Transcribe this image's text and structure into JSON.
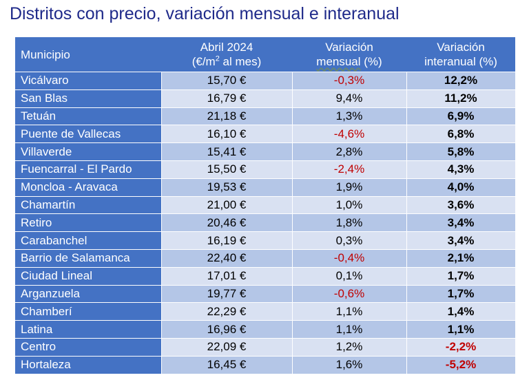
{
  "title": "Distritos con precio, variación mensual e interanual",
  "header": {
    "municipio": "Municipio",
    "precio_line1": "Abril 2024",
    "precio_pre": "(€/m",
    "precio_sup": "2",
    "precio_post": " al mes)",
    "mensual_line1": "Variación",
    "mensual_line2": "mensual",
    "mensual_suffix": " (%)",
    "interanual_line1": "Variación",
    "interanual_line2": "interanual (%)"
  },
  "rows": [
    {
      "municipio": "Vicálvaro",
      "precio": "15,70 €",
      "mensual": "-0,3%",
      "interanual": "12,2%"
    },
    {
      "municipio": "San Blas",
      "precio": "16,79 €",
      "mensual": "9,4%",
      "interanual": "11,2%"
    },
    {
      "municipio": "Tetuán",
      "precio": "21,18 €",
      "mensual": "1,3%",
      "interanual": "6,9%"
    },
    {
      "municipio": "Puente de Vallecas",
      "precio": "16,10 €",
      "mensual": "-4,6%",
      "interanual": "6,8%"
    },
    {
      "municipio": "Villaverde",
      "precio": "15,41 €",
      "mensual": "2,8%",
      "interanual": "5,8%"
    },
    {
      "municipio": "Fuencarral - El Pardo",
      "precio": "15,50 €",
      "mensual": "-2,4%",
      "interanual": "4,3%"
    },
    {
      "municipio": "Moncloa - Aravaca",
      "precio": "19,53 €",
      "mensual": "1,9%",
      "interanual": "4,0%"
    },
    {
      "municipio": "Chamartín",
      "precio": "21,00 €",
      "mensual": "1,0%",
      "interanual": "3,6%"
    },
    {
      "municipio": "Retiro",
      "precio": "20,46 €",
      "mensual": "1,8%",
      "interanual": "3,4%"
    },
    {
      "municipio": "Carabanchel",
      "precio": "16,19 €",
      "mensual": "0,3%",
      "interanual": "3,4%"
    },
    {
      "municipio": "Barrio de Salamanca",
      "precio": "22,40 €",
      "mensual": "-0,4%",
      "interanual": "2,1%"
    },
    {
      "municipio": "Ciudad Lineal",
      "precio": "17,01 €",
      "mensual": "0,1%",
      "interanual": "1,7%"
    },
    {
      "municipio": "Arganzuela",
      "precio": "19,77 €",
      "mensual": "-0,6%",
      "interanual": "1,7%"
    },
    {
      "municipio": "Chamberí",
      "precio": "22,29 €",
      "mensual": "1,1%",
      "interanual": "1,4%"
    },
    {
      "municipio": "Latina",
      "precio": "16,96 €",
      "mensual": "1,1%",
      "interanual": "1,1%"
    },
    {
      "municipio": "Centro",
      "precio": "22,09 €",
      "mensual": "1,2%",
      "interanual": "-2,2%"
    },
    {
      "municipio": "Hortaleza",
      "precio": "16,45 €",
      "mensual": "1,6%",
      "interanual": "-5,2%"
    }
  ],
  "colors": {
    "title": "#1f2a8a",
    "header_bg": "#4472c4",
    "row_odd": "#b4c6e7",
    "row_even": "#d9e1f2",
    "negative": "#c00000"
  }
}
